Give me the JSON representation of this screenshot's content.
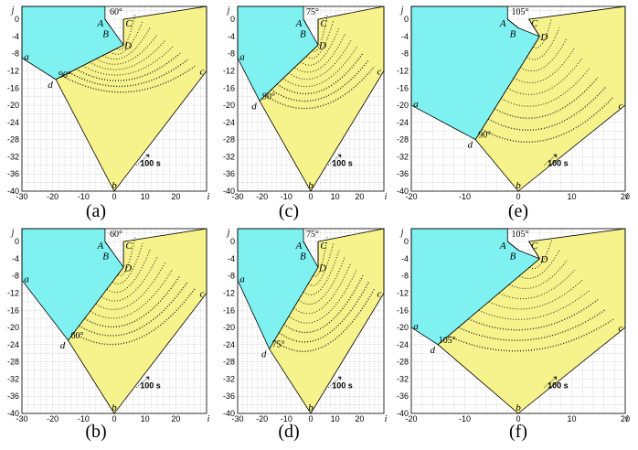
{
  "colors": {
    "cyan": "#7FF1F1",
    "yellow": "#F6F28C",
    "grid": "#bbbbbb",
    "outline": "#000000"
  },
  "y_ticks": [
    "0",
    "-4",
    "-8",
    "-12",
    "-16",
    "-20",
    "-24",
    "-28",
    "-32",
    "-36",
    "-40"
  ],
  "y_axis_label": "j",
  "x_axis_label": "i",
  "time_scale_label": "100 s",
  "panels": [
    {
      "caption": "(a)",
      "gate_angle": "60°",
      "junction_angle": "90°",
      "x_ticks": [
        "-30",
        "-20",
        "-10",
        "0",
        "10",
        "20"
      ],
      "imin": -30,
      "imax": 30,
      "A": [
        -3,
        0
      ],
      "C": [
        3,
        0
      ],
      "B": [
        -1,
        -2
      ],
      "D": [
        3,
        -6
      ],
      "a": [
        -30,
        -9
      ],
      "d": [
        -19,
        -14
      ],
      "b": [
        0,
        -40
      ],
      "c": [
        30,
        -12
      ]
    },
    {
      "caption": "(c)",
      "gate_angle": "75°",
      "junction_angle": "90°",
      "x_ticks": [
        "-30",
        "-20",
        "-10",
        "0",
        "10",
        "20"
      ],
      "imin": -30,
      "imax": 30,
      "A": [
        -3,
        0
      ],
      "C": [
        3,
        0
      ],
      "B": [
        -1,
        -2
      ],
      "D": [
        3,
        -6
      ],
      "a": [
        -30,
        -9
      ],
      "d": [
        -21,
        -19
      ],
      "b": [
        0,
        -40
      ],
      "c": [
        30,
        -12
      ]
    },
    {
      "caption": "(e)",
      "gate_angle": "105°",
      "junction_angle": "90°",
      "x_ticks": [
        "-20",
        "-10",
        "0",
        "10",
        "20"
      ],
      "imin": -20,
      "imax": 20,
      "A": [
        -2,
        0
      ],
      "C": [
        2,
        0
      ],
      "B": [
        0,
        -2
      ],
      "D": [
        4,
        -4
      ],
      "a": [
        -20,
        -20
      ],
      "d": [
        -8,
        -28
      ],
      "b": [
        0,
        -40
      ],
      "c": [
        20,
        -20
      ]
    },
    {
      "caption": "(b)",
      "gate_angle": "60°",
      "junction_angle": "60°",
      "x_ticks": [
        "-30",
        "-20",
        "-10",
        "0",
        "10",
        "20"
      ],
      "imin": -30,
      "imax": 30,
      "A": [
        -3,
        0
      ],
      "C": [
        3,
        0
      ],
      "B": [
        -1,
        -2
      ],
      "D": [
        3,
        -6
      ],
      "a": [
        -30,
        -9
      ],
      "d": [
        -15,
        -23
      ],
      "b": [
        0,
        -40
      ],
      "c": [
        30,
        -12
      ]
    },
    {
      "caption": "(d)",
      "gate_angle": "75°",
      "junction_angle": "75°",
      "x_ticks": [
        "-30",
        "-20",
        "-10",
        "0",
        "10",
        "20"
      ],
      "imin": -30,
      "imax": 30,
      "A": [
        -3,
        0
      ],
      "C": [
        3,
        0
      ],
      "B": [
        -1,
        -2
      ],
      "D": [
        3,
        -6
      ],
      "a": [
        -30,
        -9
      ],
      "d": [
        -17,
        -25
      ],
      "b": [
        0,
        -40
      ],
      "c": [
        30,
        -12
      ]
    },
    {
      "caption": "(f)",
      "gate_angle": "105°",
      "junction_angle": "105°",
      "x_ticks": [
        "-20",
        "-10",
        "0",
        "10",
        "20"
      ],
      "imin": -20,
      "imax": 20,
      "A": [
        -2,
        0
      ],
      "C": [
        2,
        0
      ],
      "B": [
        0,
        -2
      ],
      "D": [
        4,
        -4
      ],
      "a": [
        -20,
        -20
      ],
      "d": [
        -15,
        -24
      ],
      "b": [
        0,
        -40
      ],
      "c": [
        20,
        -20
      ]
    }
  ]
}
